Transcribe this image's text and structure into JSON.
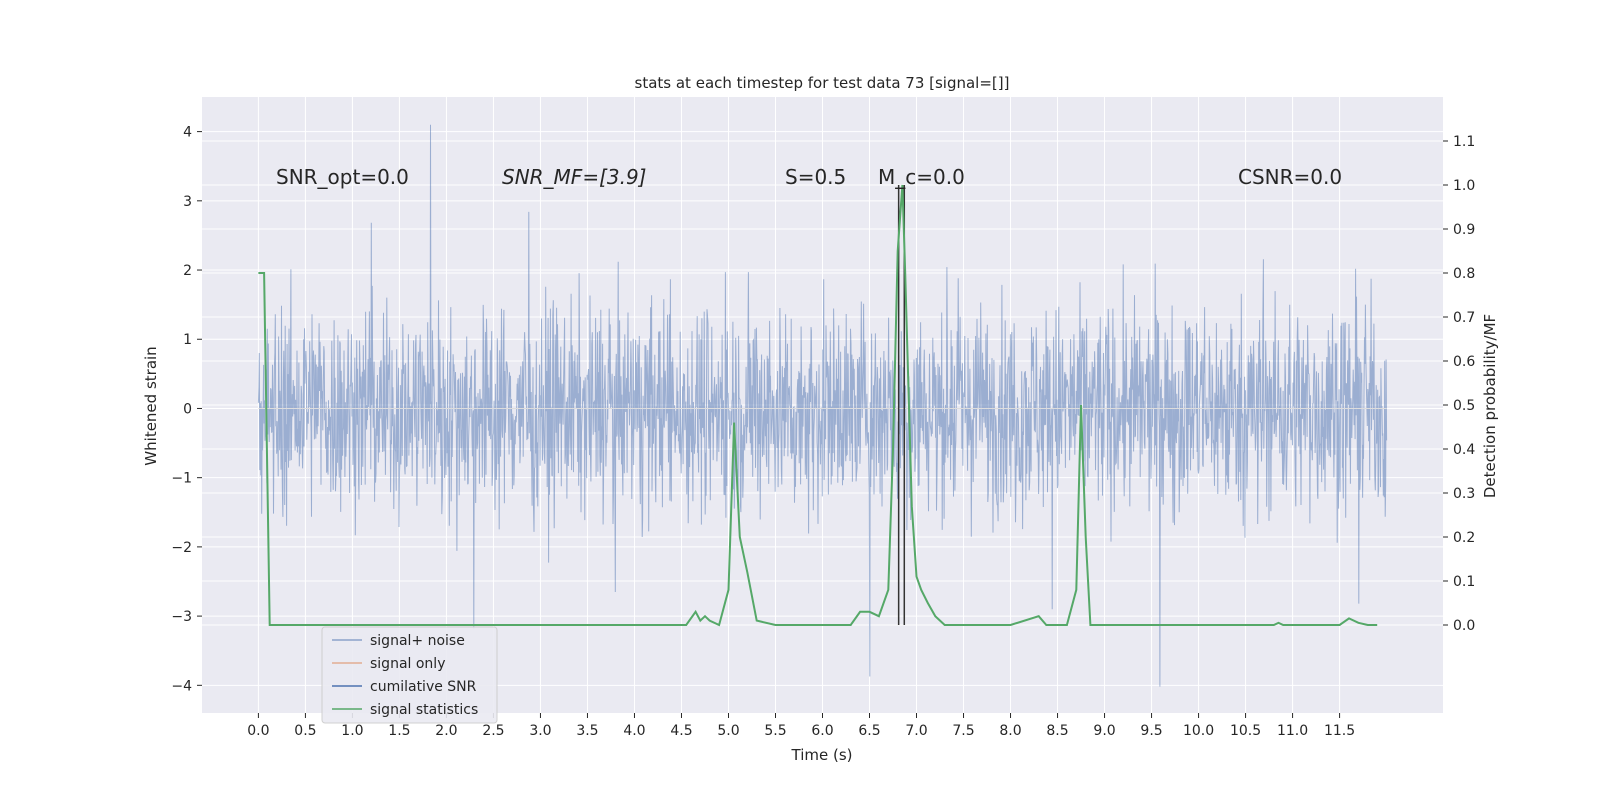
{
  "chart_data": {
    "type": "line",
    "title": "stats at each timestep for test data 73 [signal=[]]",
    "xlabel": "Time (s)",
    "ylabel_left": "Whitened strain",
    "ylabel_right": "Detection probability/MF",
    "xlim": [
      -0.6,
      12.6
    ],
    "ylim_left": [
      -4.4,
      4.5
    ],
    "ylim_right": [
      -0.2,
      1.2
    ],
    "x_ticks": [
      "0.0",
      "0.5",
      "1.0",
      "1.5",
      "2.0",
      "2.5",
      "3.0",
      "3.5",
      "4.0",
      "4.5",
      "5.0",
      "5.5",
      "6.0",
      "6.5",
      "7.0",
      "7.5",
      "8.0",
      "8.5",
      "9.0",
      "9.5",
      "10.0",
      "10.5",
      "11.0",
      "11.5"
    ],
    "y_ticks_left": [
      "−4",
      "−3",
      "−2",
      "−1",
      "0",
      "1",
      "2",
      "3",
      "4"
    ],
    "y_ticks_right": [
      "0.0",
      "0.1",
      "0.2",
      "0.3",
      "0.4",
      "0.5",
      "0.6",
      "0.7",
      "0.8",
      "0.9",
      "1.0",
      "1.1"
    ],
    "grid": true,
    "legend_position": "lower-left",
    "annotations": [
      {
        "text": "SNR_opt=0.0"
      },
      {
        "text": "SNR_MF=[3.9]"
      },
      {
        "text": "S=0.5"
      },
      {
        "text": "M_c=0.0"
      },
      {
        "text": "CSNR=0.0"
      }
    ],
    "vertical_markers": [
      6.81,
      6.87
    ],
    "series": [
      {
        "name": "signal+ noise",
        "color": "#4c72b0",
        "axis": "left",
        "description_range": [
          0.0,
          12.0
        ],
        "amplitude_typical": 2.0,
        "amplitude_peak": 4.1
      },
      {
        "name": "signal only",
        "color": "#dd8452",
        "axis": "left",
        "x": [],
        "y": []
      },
      {
        "name": "cumilative SNR",
        "color": "#4c72b0",
        "axis": "left",
        "x": [],
        "y": []
      },
      {
        "name": "signal statistics",
        "color": "#55a868",
        "axis": "right",
        "x": [
          0.0,
          0.06,
          0.12,
          0.5,
          1.0,
          2.0,
          3.0,
          4.0,
          4.55,
          4.65,
          4.7,
          4.75,
          4.8,
          4.9,
          5.0,
          5.06,
          5.12,
          5.2,
          5.3,
          5.5,
          6.0,
          6.3,
          6.4,
          6.5,
          6.6,
          6.7,
          6.75,
          6.8,
          6.85,
          6.88,
          6.95,
          7.0,
          7.05,
          7.12,
          7.2,
          7.3,
          7.5,
          8.0,
          8.3,
          8.38,
          8.45,
          8.5,
          8.6,
          8.7,
          8.75,
          8.8,
          8.85,
          8.9,
          9.0,
          9.5,
          10.0,
          10.5,
          10.8,
          10.85,
          10.9,
          11.0,
          11.5,
          11.6,
          11.7,
          11.8,
          11.9
        ],
        "y": [
          0.8,
          0.8,
          0.0,
          0.0,
          0.0,
          0.0,
          0.0,
          0.0,
          0.0,
          0.03,
          0.01,
          0.02,
          0.01,
          0.0,
          0.08,
          0.46,
          0.2,
          0.12,
          0.01,
          0.0,
          0.0,
          0.0,
          0.03,
          0.03,
          0.02,
          0.08,
          0.4,
          0.85,
          1.0,
          0.8,
          0.27,
          0.11,
          0.08,
          0.05,
          0.02,
          0.0,
          0.0,
          0.0,
          0.02,
          0.0,
          0.0,
          0.0,
          0.0,
          0.08,
          0.5,
          0.2,
          0.0,
          0.0,
          0.0,
          0.0,
          0.0,
          0.0,
          0.0,
          0.005,
          0.0,
          0.0,
          0.0,
          0.015,
          0.005,
          0.0,
          0.0
        ]
      }
    ]
  }
}
